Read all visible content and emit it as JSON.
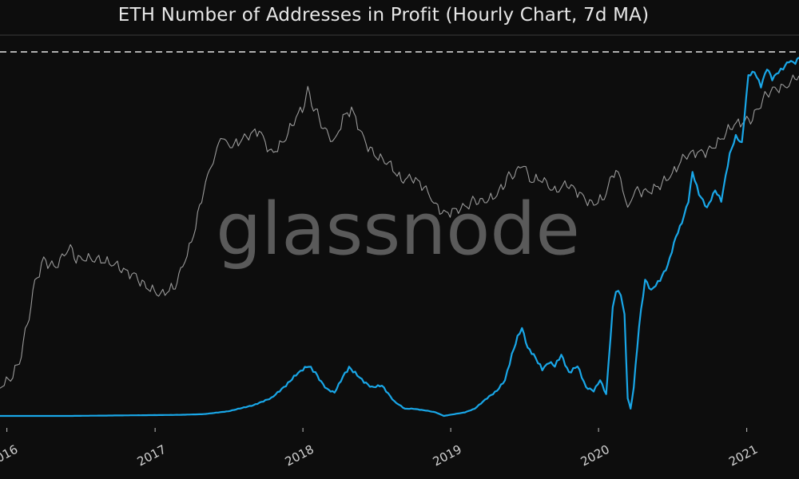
{
  "title": "ETH Number of Addresses in Profit (Hourly Chart, 7d MA)",
  "watermark": "glassnode",
  "colors": {
    "background": "#0d0d0d",
    "addresses_in_profit": "#19a7e8",
    "price": "#9a9a9a",
    "ath_line": "#e6e6e6",
    "watermark": "#5a5a5a",
    "axis_text": "#d0d0d0"
  },
  "chart_data": {
    "type": "line",
    "title": "ETH Number of Addresses in Profit (Hourly Chart, 7d MA)",
    "x_tick_labels": [
      "2016",
      "2017",
      "2018",
      "2019",
      "2020",
      "2021"
    ],
    "xlim": [
      "2015-12-15",
      "2021-05-10"
    ],
    "grid": false,
    "reference_lines": [
      {
        "type": "horizontal",
        "style": "dashed",
        "value": "all-time high"
      }
    ],
    "series": [
      {
        "id": "addresses_in_profit",
        "color": "#19a7e8",
        "relative_level_0_to_1": true,
        "x": [
          "2015-12-15",
          "2016-06-01",
          "2016-12-01",
          "2017-03-01",
          "2017-05-01",
          "2017-07-01",
          "2017-09-01",
          "2017-10-15",
          "2017-11-20",
          "2017-12-15",
          "2018-01-01",
          "2018-01-15",
          "2018-02-01",
          "2018-02-15",
          "2018-03-01",
          "2018-03-20",
          "2018-04-10",
          "2018-04-25",
          "2018-05-10",
          "2018-06-01",
          "2018-06-20",
          "2018-07-15",
          "2018-08-15",
          "2018-09-10",
          "2018-10-01",
          "2018-11-01",
          "2018-11-25",
          "2018-12-15",
          "2019-01-10",
          "2019-02-05",
          "2019-03-01",
          "2019-04-01",
          "2019-04-25",
          "2019-05-15",
          "2019-06-01",
          "2019-06-15",
          "2019-06-26",
          "2019-07-10",
          "2019-07-25",
          "2019-08-15",
          "2019-09-01",
          "2019-09-15",
          "2019-10-01",
          "2019-10-20",
          "2019-11-10",
          "2019-12-01",
          "2019-12-20",
          "2020-01-05",
          "2020-01-20",
          "2020-02-05",
          "2020-02-13",
          "2020-02-25",
          "2020-03-05",
          "2020-03-13",
          "2020-03-20",
          "2020-03-28",
          "2020-04-10",
          "2020-04-25",
          "2020-05-10",
          "2020-06-01",
          "2020-06-20",
          "2020-07-10",
          "2020-07-25",
          "2020-08-10",
          "2020-08-20",
          "2020-09-05",
          "2020-09-25",
          "2020-10-15",
          "2020-10-30",
          "2020-11-10",
          "2020-11-20",
          "2020-12-05",
          "2020-12-20",
          "2021-01-05",
          "2021-01-20",
          "2021-02-05",
          "2021-02-20",
          "2021-03-05",
          "2021-03-20",
          "2021-04-01",
          "2021-04-15",
          "2021-05-01",
          "2021-05-10"
        ],
        "y": [
          0.0,
          0.0,
          0.002,
          0.003,
          0.005,
          0.013,
          0.03,
          0.05,
          0.085,
          0.115,
          0.13,
          0.14,
          0.12,
          0.095,
          0.075,
          0.065,
          0.11,
          0.135,
          0.12,
          0.095,
          0.08,
          0.085,
          0.04,
          0.02,
          0.02,
          0.015,
          0.01,
          0.0,
          0.005,
          0.01,
          0.02,
          0.05,
          0.07,
          0.1,
          0.17,
          0.22,
          0.245,
          0.19,
          0.17,
          0.13,
          0.15,
          0.14,
          0.17,
          0.12,
          0.14,
          0.08,
          0.07,
          0.1,
          0.06,
          0.3,
          0.35,
          0.34,
          0.28,
          0.05,
          0.02,
          0.08,
          0.25,
          0.38,
          0.35,
          0.38,
          0.42,
          0.5,
          0.54,
          0.6,
          0.68,
          0.62,
          0.58,
          0.63,
          0.6,
          0.67,
          0.73,
          0.78,
          0.76,
          0.95,
          0.96,
          0.92,
          0.97,
          0.94,
          0.96,
          0.97,
          0.99,
          0.985,
          1.0
        ]
      },
      {
        "id": "eth_price",
        "color": "#9a9a9a",
        "relative_level_0_to_1": true,
        "x": [
          "2015-12-15",
          "2016-01-10",
          "2016-02-01",
          "2016-02-20",
          "2016-03-10",
          "2016-04-01",
          "2016-05-01",
          "2016-06-01",
          "2016-06-20",
          "2016-07-15",
          "2016-08-15",
          "2016-09-15",
          "2016-10-15",
          "2016-11-15",
          "2016-12-15",
          "2017-01-15",
          "2017-02-15",
          "2017-03-10",
          "2017-04-01",
          "2017-05-01",
          "2017-05-20",
          "2017-06-12",
          "2017-07-15",
          "2017-08-15",
          "2017-09-15",
          "2017-10-15",
          "2017-11-15",
          "2017-12-15",
          "2018-01-05",
          "2018-01-13",
          "2018-02-01",
          "2018-02-20",
          "2018-03-10",
          "2018-03-20",
          "2018-04-10",
          "2018-05-01",
          "2018-06-01",
          "2018-07-01",
          "2018-08-01",
          "2018-09-01",
          "2018-10-01",
          "2018-11-01",
          "2018-11-25",
          "2018-12-15",
          "2019-01-15",
          "2019-02-15",
          "2019-03-15",
          "2019-04-15",
          "2019-05-15",
          "2019-06-26",
          "2019-07-15",
          "2019-08-15",
          "2019-09-15",
          "2019-10-15",
          "2019-11-15",
          "2019-12-15",
          "2020-01-15",
          "2020-02-13",
          "2020-03-01",
          "2020-03-13",
          "2020-04-01",
          "2020-05-01",
          "2020-06-01",
          "2020-07-01",
          "2020-08-01",
          "2020-09-01",
          "2020-10-01",
          "2020-11-01",
          "2020-12-01",
          "2021-01-01",
          "2021-01-20",
          "2021-02-10",
          "2021-03-01",
          "2021-04-01",
          "2021-04-20",
          "2021-05-10"
        ],
        "y": [
          0.02,
          0.04,
          0.1,
          0.2,
          0.35,
          0.42,
          0.4,
          0.45,
          0.42,
          0.43,
          0.42,
          0.4,
          0.38,
          0.37,
          0.33,
          0.3,
          0.32,
          0.4,
          0.48,
          0.63,
          0.72,
          0.8,
          0.78,
          0.8,
          0.82,
          0.76,
          0.8,
          0.86,
          0.9,
          0.96,
          0.88,
          0.84,
          0.8,
          0.78,
          0.86,
          0.89,
          0.8,
          0.75,
          0.72,
          0.66,
          0.68,
          0.65,
          0.58,
          0.56,
          0.58,
          0.6,
          0.6,
          0.62,
          0.66,
          0.72,
          0.67,
          0.68,
          0.64,
          0.65,
          0.62,
          0.6,
          0.62,
          0.7,
          0.64,
          0.58,
          0.63,
          0.64,
          0.66,
          0.68,
          0.74,
          0.76,
          0.77,
          0.8,
          0.84,
          0.86,
          0.88,
          0.92,
          0.95,
          0.97,
          0.98,
          1.0
        ]
      }
    ]
  }
}
